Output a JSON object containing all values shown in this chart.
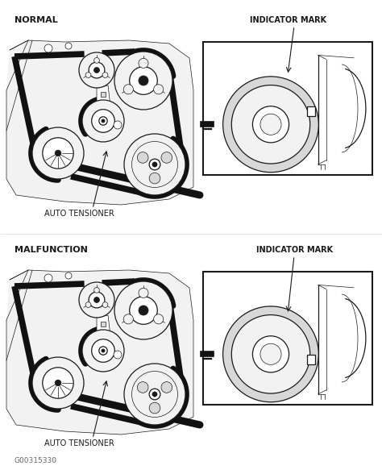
{
  "bg_color": "#ffffff",
  "line_color": "#1a1a1a",
  "fig_width": 4.74,
  "fig_height": 5.83,
  "dpi": 100,
  "label_normal": "NORMAL",
  "label_malfunction": "MALFUNCTION",
  "label_auto_tensioner": "AUTO TENSIONER",
  "label_indicator_mark": "INDICATOR MARK",
  "label_code": "G00315330",
  "title_fontsize": 8.0,
  "label_fontsize": 7.0,
  "code_fontsize": 6.5,
  "belt_color": "#111111",
  "fill_light": "#f2f2f2",
  "fill_mid": "#d8d8d8",
  "fill_dark": "#aaaaaa"
}
